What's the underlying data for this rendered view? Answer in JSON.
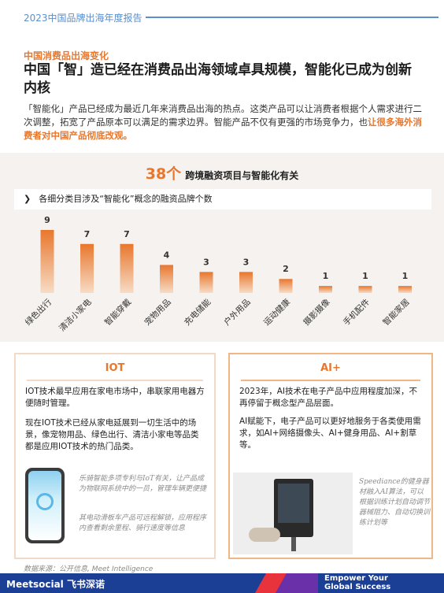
{
  "header": {
    "report_title": "2023中国品牌出海年度报告"
  },
  "section": {
    "kicker": "中国消费品出海变化",
    "headline": "中国「智」造已经在消费品出海领域卓具规模，智能化已成为创新内核",
    "intro_plain": "「智能化」产品已经成为最近几年来消费品出海的热点。这类产品可以让消费者根据个人需求进行二次调整，拓宽了产品原本可以满足的需求边界。智能产品不仅有更强的市场竞争力，也",
    "intro_highlight": "让很多海外消费者对中国产品彻底改观。",
    "banner_number": "38个",
    "banner_text": "跨境融资项目与智能化有关",
    "chart_heading": "各细分类目涉及“智能化”概念的融资品牌个数"
  },
  "chart_data": {
    "type": "bar",
    "categories": [
      "绿色出行",
      "清洁小家电",
      "智能穿戴",
      "宠物用品",
      "充电储能",
      "户外用品",
      "运动健康",
      "摄影摄像",
      "手机配件",
      "智能家居"
    ],
    "values": [
      9,
      7,
      7,
      4,
      3,
      3,
      2,
      1,
      1,
      1
    ],
    "bar_color_top": "#e8772e",
    "bar_color_bottom": "#f7dcc5"
  },
  "cards": {
    "iot": {
      "title": "IOT",
      "p1": "IOT技术最早应用在家电市场中，串联家用电器方便随时管理。",
      "p2": "现在IOT技术已经从家电延展到一切生活中的场景，像宠物用品、绿色出行、清洁小家电等品类都是应用IOT技术的热门品类。",
      "note1": "乐骑智能多项专利与IoT有关，让产品成为物联网系统中的一员，管理车辆更便捷",
      "note2": "其电动滑板车产品可远程解锁，应用程序内查看剩余里程、骑行速度等信息"
    },
    "ai": {
      "title": "AI+",
      "p1": "2023年，AI技术在电子产品中应用程度加深，不再停留于概念型产品层面。",
      "p2": "AI赋能下，电子产品可以更好地服务于各类使用需求，如AI+网络摄像头、AI+健身用品、AI+割草等。",
      "note": "Speediance的健身器材融入AI算法，可以根据训练计划自动调节器械阻力、自动切换训练计划等"
    }
  },
  "source": "数据来源：公开信息, Meet Intelligence",
  "footer": {
    "brand": "Meetsocial 飞书深诺",
    "slogan_line1": "Empower Your",
    "slogan_line2": "Global Success"
  },
  "colors": {
    "accent": "#e8772e",
    "header_blue": "#5a90d0",
    "footer_navy": "#1c3f96"
  }
}
